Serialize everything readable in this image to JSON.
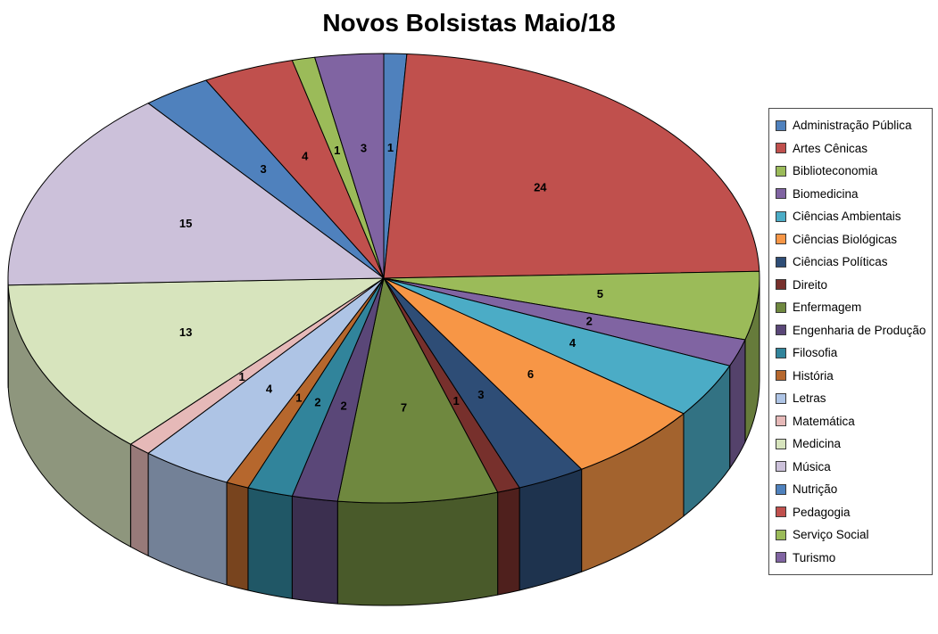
{
  "chart_data": {
    "type": "pie",
    "style": "3d",
    "title": "Novos Bolsistas Maio/18",
    "direction": "clockwise",
    "start_angle_deg": 0,
    "legend_position": "right",
    "data_labels": "values",
    "total": 102,
    "categories": [
      "Administração Pública",
      "Artes Cênicas",
      "Biblioteconomia",
      "Biomedicina",
      "Ciências Ambientais",
      "Ciências Biológicas",
      "Ciências Políticas",
      "Direito",
      "Enfermagem",
      "Engenharia de Produção",
      "Filosofia",
      "História",
      "Letras",
      "Matemática",
      "Medicina",
      "Música",
      "Nutrição",
      "Pedagogia",
      "Serviço Social",
      "Turismo"
    ],
    "values": [
      1,
      24,
      5,
      2,
      4,
      6,
      3,
      1,
      7,
      2,
      2,
      1,
      4,
      1,
      13,
      15,
      3,
      4,
      1,
      3
    ],
    "colors": [
      "#4F81BD",
      "#C0504D",
      "#9BBB59",
      "#8064A2",
      "#4BACC6",
      "#F79646",
      "#2E4D76",
      "#77302C",
      "#6F883F",
      "#5A4778",
      "#31849B",
      "#B6672D",
      "#AEC4E5",
      "#E6B9B8",
      "#D7E4BD",
      "#CCC1DA",
      "#4F81BD",
      "#C0504D",
      "#9BBB59",
      "#8064A2"
    ]
  }
}
